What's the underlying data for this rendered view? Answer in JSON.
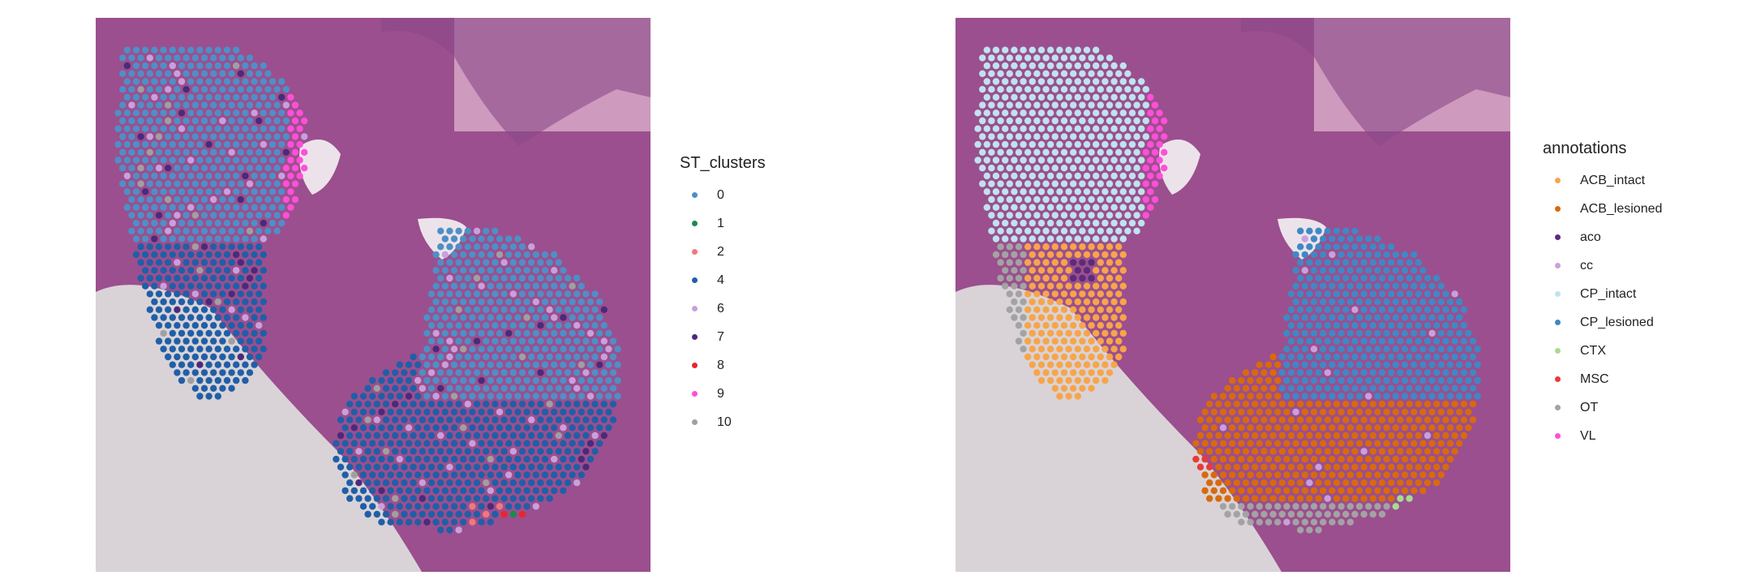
{
  "chart_data": [
    {
      "type": "scatter",
      "title": "",
      "xlabel": "",
      "ylabel": "",
      "grid": false,
      "background": "H&E tissue image",
      "legend": {
        "title": "ST_clusters",
        "position": "right",
        "entries": [
          {
            "label": "0",
            "color": "#4E8FC7"
          },
          {
            "label": "1",
            "color": "#1C8A4F"
          },
          {
            "label": "2",
            "color": "#F0787C"
          },
          {
            "label": "4",
            "color": "#1F5FA8"
          },
          {
            "label": "6",
            "color": "#C9A0DC"
          },
          {
            "label": "7",
            "color": "#4B2A7B"
          },
          {
            "label": "8",
            "color": "#E8262B"
          },
          {
            "label": "9",
            "color": "#FF4FD8"
          },
          {
            "label": "10",
            "color": "#A0A0A0"
          }
        ]
      },
      "spot_groups": [
        {
          "region": "left-upper lobe",
          "category": "0"
        },
        {
          "region": "left-lower lobe",
          "category": "4"
        },
        {
          "region": "left lobe boundary",
          "category": "9"
        },
        {
          "region": "right-upper lobe",
          "category": "0"
        },
        {
          "region": "right-lower lobe",
          "category": "4"
        },
        {
          "region": "right lobe boundary",
          "category": "9"
        },
        {
          "region": "scattered",
          "category": "6"
        },
        {
          "region": "scattered",
          "category": "7"
        },
        {
          "region": "scattered",
          "category": "10"
        },
        {
          "region": "bottom edge",
          "category": "2"
        },
        {
          "region": "bottom edge",
          "category": "8"
        },
        {
          "region": "bottom edge",
          "category": "1"
        }
      ]
    },
    {
      "type": "scatter",
      "title": "",
      "xlabel": "",
      "ylabel": "",
      "grid": false,
      "background": "H&E tissue image",
      "legend": {
        "title": "annotations",
        "position": "right",
        "entries": [
          {
            "label": "ACB_intact",
            "color": "#F7A54A"
          },
          {
            "label": "ACB_lesioned",
            "color": "#D86A0C"
          },
          {
            "label": "aco",
            "color": "#5B2C7A"
          },
          {
            "label": "cc",
            "color": "#C9A0DC"
          },
          {
            "label": "CP_intact",
            "color": "#BFE3EE"
          },
          {
            "label": "CP_lesioned",
            "color": "#3F88C5"
          },
          {
            "label": "CTX",
            "color": "#A8DC8F"
          },
          {
            "label": "MSC",
            "color": "#E83A3A"
          },
          {
            "label": "OT",
            "color": "#A3A3A3"
          },
          {
            "label": "VL",
            "color": "#FF4FD8"
          }
        ]
      },
      "spot_groups": [
        {
          "region": "left-upper lobe",
          "category": "CP_intact"
        },
        {
          "region": "left-lower lobe",
          "category": "ACB_intact"
        },
        {
          "region": "left lobe boundary",
          "category": "VL"
        },
        {
          "region": "right-upper lobe",
          "category": "CP_lesioned"
        },
        {
          "region": "right-lower lobe",
          "category": "ACB_lesioned"
        },
        {
          "region": "right lobe boundary",
          "category": "VL"
        },
        {
          "region": "bottom edge",
          "category": "OT"
        },
        {
          "region": "bottom edge",
          "category": "CTX"
        },
        {
          "region": "center",
          "category": "aco"
        },
        {
          "region": "bottom edge",
          "category": "MSC"
        }
      ]
    }
  ]
}
